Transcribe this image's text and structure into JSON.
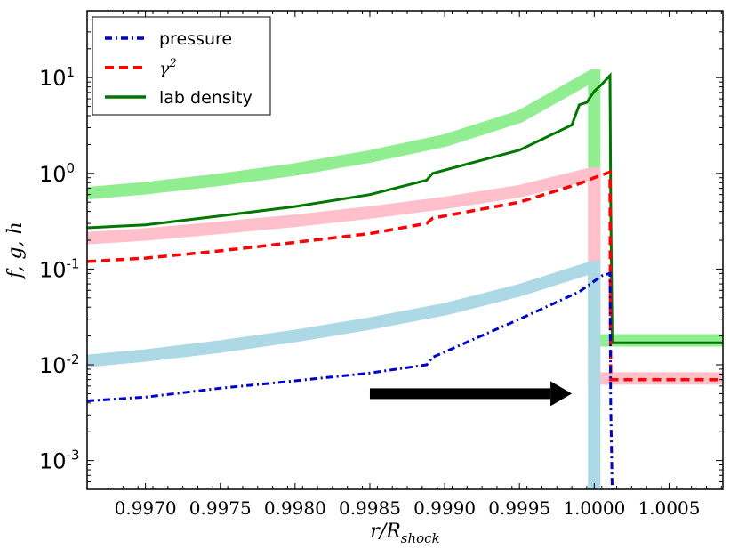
{
  "chart_data": {
    "type": "line",
    "xlabel": "r/R_shock",
    "ylabel": "f, g, h",
    "yscale": "log",
    "xlim": [
      0.99661,
      1.00086
    ],
    "ylim": [
      0.0005,
      50
    ],
    "xticks": [
      {
        "value": 0.997,
        "label": "0.9970"
      },
      {
        "value": 0.9975,
        "label": "0.9975"
      },
      {
        "value": 0.998,
        "label": "0.9980"
      },
      {
        "value": 0.9985,
        "label": "0.9985"
      },
      {
        "value": 0.999,
        "label": "0.9990"
      },
      {
        "value": 0.9995,
        "label": "0.9995"
      },
      {
        "value": 1.0,
        "label": "1.0000"
      },
      {
        "value": 1.0005,
        "label": "1.0005"
      }
    ],
    "yticks": [
      {
        "value": 10,
        "base": "10",
        "exp": "1"
      },
      {
        "value": 1,
        "base": "10",
        "exp": "0"
      },
      {
        "value": 0.1,
        "base": "10",
        "exp": "-1"
      },
      {
        "value": 0.01,
        "base": "10",
        "exp": "-2"
      },
      {
        "value": 0.001,
        "base": "10",
        "exp": "-3"
      }
    ],
    "legend": {
      "position": "top-left",
      "entries": [
        {
          "label": "pressure",
          "color": "#0000cc",
          "style": "dashdot"
        },
        {
          "label": "γ",
          "label_sup": "2",
          "color": "#ff0000",
          "style": "dashed"
        },
        {
          "label": "lab density",
          "color": "#007700",
          "style": "solid"
        }
      ]
    },
    "series": [
      {
        "name": "lab density (thick, analytic)",
        "color": "#90ee90",
        "style": "thick",
        "x": [
          0.99661,
          0.997,
          0.9975,
          0.998,
          0.9985,
          0.999,
          0.9995,
          0.99999,
          1.0,
          1.0,
          1.00086
        ],
        "y": [
          0.62,
          0.7,
          0.86,
          1.1,
          1.5,
          2.2,
          3.9,
          10.5,
          10.5,
          0.018,
          0.018
        ]
      },
      {
        "name": "γ² (thick, analytic)",
        "color": "#ffc0cb",
        "style": "thick",
        "x": [
          0.99661,
          0.997,
          0.9975,
          0.998,
          0.9985,
          0.999,
          0.9995,
          0.99999,
          1.0,
          1.0,
          1.00086
        ],
        "y": [
          0.21,
          0.23,
          0.27,
          0.32,
          0.39,
          0.49,
          0.65,
          1.0,
          1.0,
          0.0072,
          0.0072
        ]
      },
      {
        "name": "pressure (thick, analytic)",
        "color": "#add8e6",
        "style": "thick",
        "x": [
          0.99661,
          0.997,
          0.9975,
          0.998,
          0.9985,
          0.999,
          0.9995,
          0.99999,
          1.0,
          1.0
        ],
        "y": [
          0.011,
          0.0125,
          0.0155,
          0.02,
          0.027,
          0.038,
          0.06,
          0.105,
          0.105,
          0.0005
        ]
      },
      {
        "name": "lab density",
        "color": "#007700",
        "style": "solid",
        "x": [
          0.99661,
          0.997,
          0.9975,
          0.998,
          0.9985,
          0.99888,
          0.99892,
          0.9995,
          0.99985,
          0.9999,
          0.99995,
          1.0,
          1.00005,
          1.000105,
          1.00011,
          1.00012,
          1.00086
        ],
        "y": [
          0.27,
          0.29,
          0.36,
          0.45,
          0.6,
          0.85,
          1.0,
          1.75,
          3.2,
          5.2,
          5.5,
          7.2,
          8.5,
          10.5,
          0.55,
          0.017,
          0.017
        ]
      },
      {
        "name": "γ²",
        "color": "#ff0000",
        "style": "dashed",
        "x": [
          0.99661,
          0.997,
          0.9975,
          0.998,
          0.9985,
          0.99888,
          0.99892,
          0.9995,
          0.9999,
          1.0,
          1.000105,
          1.00011,
          1.00012,
          1.00086
        ],
        "y": [
          0.12,
          0.13,
          0.155,
          0.19,
          0.235,
          0.3,
          0.34,
          0.5,
          0.78,
          0.9,
          1.03,
          0.007,
          0.007,
          0.007
        ]
      },
      {
        "name": "pressure",
        "color": "#0000cc",
        "style": "dashdot",
        "x": [
          0.99661,
          0.997,
          0.9975,
          0.998,
          0.9985,
          0.99888,
          0.99892,
          0.9995,
          0.9999,
          1.00005,
          1.000105,
          1.00011,
          1.00012
        ],
        "y": [
          0.0042,
          0.0046,
          0.0057,
          0.0068,
          0.0082,
          0.01,
          0.012,
          0.03,
          0.058,
          0.085,
          0.09,
          0.004,
          0.0005
        ]
      }
    ],
    "annotations": [
      {
        "type": "arrow",
        "direction": "right",
        "color": "#000000",
        "x_start": 0.9985,
        "x_end": 0.99985,
        "y": 0.005
      }
    ]
  }
}
